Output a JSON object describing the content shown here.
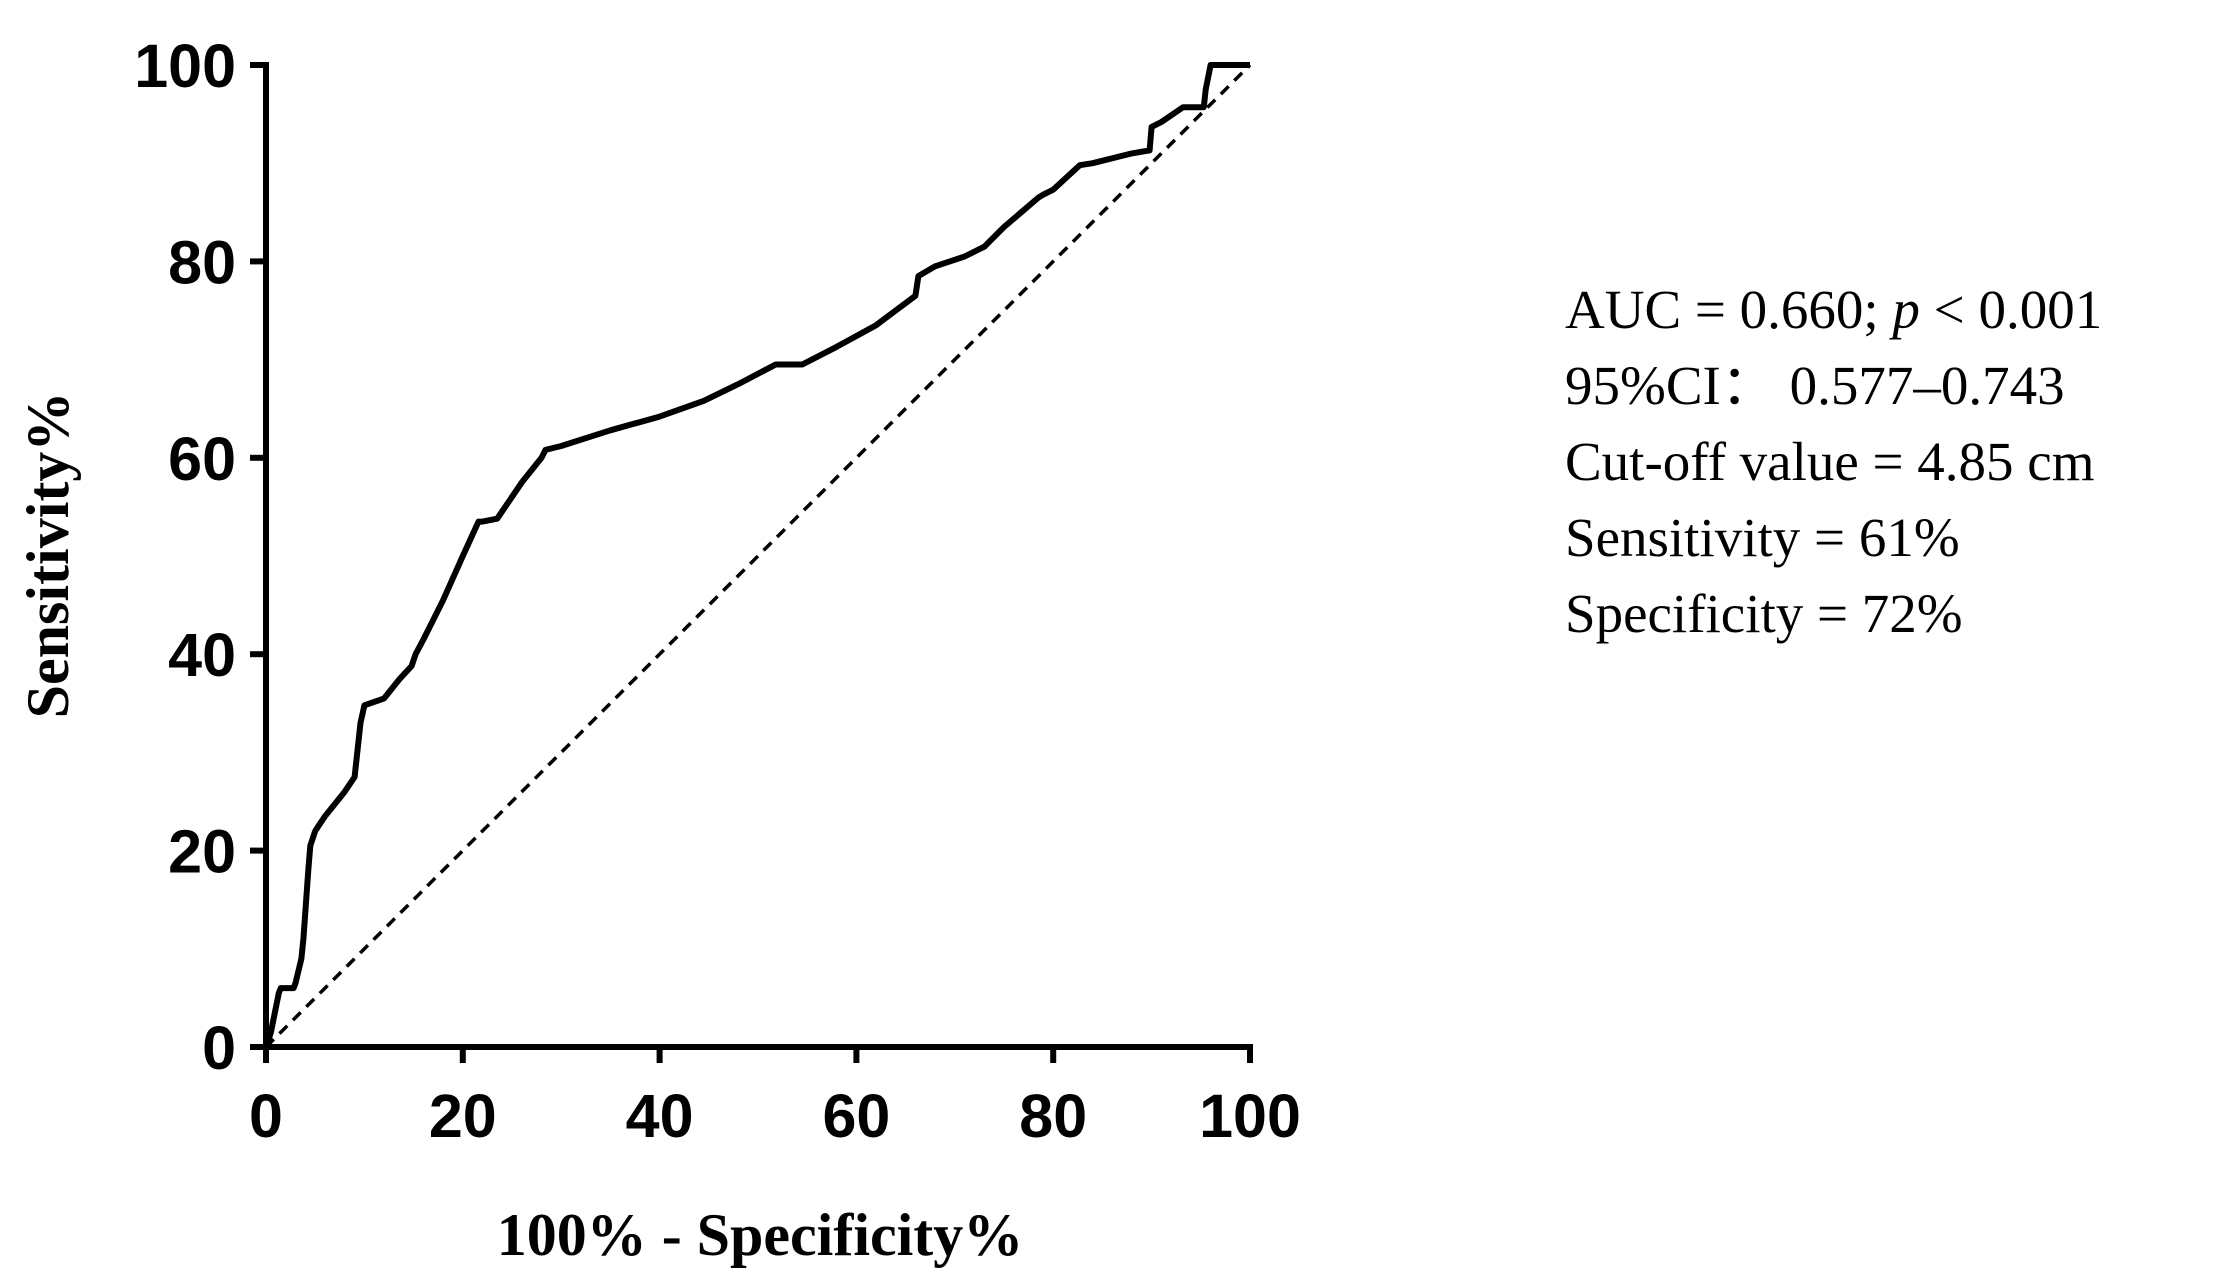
{
  "chart_data": {
    "type": "line",
    "title": "",
    "xlabel": "100% - Specificity%",
    "ylabel": "Sensitivity%",
    "xlim": [
      0,
      100
    ],
    "ylim": [
      0,
      100
    ],
    "x_ticks": [
      "0",
      "20",
      "40",
      "60",
      "80",
      "100"
    ],
    "y_ticks": [
      "0",
      "20",
      "40",
      "60",
      "80",
      "100"
    ],
    "grid": false,
    "series": [
      {
        "name": "ROC curve",
        "style": "solid",
        "color": "#000000",
        "x": [
          0,
          0.5,
          1.3,
          1.5,
          2.8,
          3.0,
          3.6,
          3.8,
          4.3,
          4.5,
          5.0,
          6.0,
          8.0,
          9.0,
          9.6,
          10.0,
          12.0,
          13.6,
          14.8,
          15.2,
          16.0,
          18.0,
          20.0,
          21.6,
          22.0,
          23.5,
          26.0,
          28.0,
          28.4,
          30.0,
          35.0,
          40.0,
          44.5,
          48.0,
          51.8,
          52.0,
          54.5,
          58.0,
          62.0,
          66.0,
          66.3,
          68.0,
          71.0,
          73.0,
          75.0,
          78.5,
          79.0,
          80.0,
          82.7,
          84.0,
          88.0,
          89.8,
          90.0,
          91.0,
          93.2,
          95.3,
          95.5,
          96.0,
          97.0,
          100.0
        ],
        "y": [
          0,
          1.5,
          5.5,
          6.0,
          6.0,
          6.5,
          9.0,
          11.0,
          18.0,
          20.5,
          22.0,
          23.5,
          26.0,
          27.5,
          33.0,
          34.8,
          35.5,
          37.5,
          38.8,
          40.0,
          41.5,
          45.5,
          50.0,
          53.5,
          53.5,
          53.8,
          57.5,
          60.0,
          60.8,
          61.2,
          62.8,
          64.2,
          65.8,
          67.5,
          69.5,
          69.5,
          69.5,
          71.3,
          73.5,
          76.5,
          78.5,
          79.5,
          80.5,
          81.5,
          83.5,
          86.5,
          86.8,
          87.3,
          89.8,
          90.0,
          91.0,
          91.3,
          93.7,
          94.2,
          95.7,
          95.7,
          97.5,
          100.0,
          100.0,
          100.0
        ]
      },
      {
        "name": "Reference line",
        "style": "dashed",
        "color": "#000000",
        "x": [
          0,
          100
        ],
        "y": [
          0,
          100
        ]
      }
    ],
    "annotations": {
      "auc_prefix": "AUC = 0.660; ",
      "p_symbol": "p",
      "p_suffix": " < 0.001",
      "ci": "95%CI： 0.577–0.743",
      "cutoff": "Cut-off value = 4.85 cm",
      "sensitivity": "Sensitivity = 61%",
      "specificity": "Specificity = 72%"
    }
  }
}
